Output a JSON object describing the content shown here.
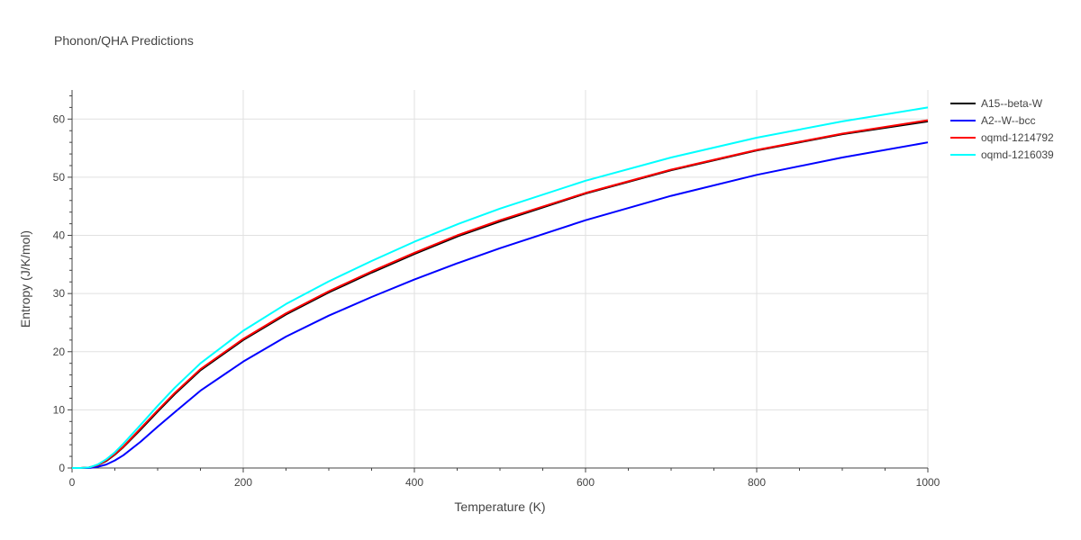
{
  "chart_data": {
    "type": "line",
    "title": "Phonon/QHA Predictions",
    "xlabel": "Temperature (K)",
    "ylabel": "Entropy (J/K/mol)",
    "xlim": [
      0,
      1000
    ],
    "ylim": [
      0,
      65
    ],
    "x_ticks": [
      0,
      200,
      400,
      600,
      800,
      1000
    ],
    "y_ticks": [
      0,
      10,
      20,
      30,
      40,
      50,
      60
    ],
    "grid": true,
    "legend_position": "right",
    "x": [
      0,
      10,
      20,
      30,
      40,
      50,
      60,
      80,
      100,
      120,
      150,
      200,
      250,
      300,
      350,
      400,
      450,
      500,
      600,
      700,
      800,
      900,
      1000
    ],
    "series": [
      {
        "name": "A15--beta-W",
        "color": "#000000",
        "values": [
          0,
          0,
          0.1,
          0.5,
          1.2,
          2.3,
          3.6,
          6.6,
          9.7,
          12.7,
          16.8,
          22.0,
          26.4,
          30.2,
          33.6,
          36.8,
          39.8,
          42.4,
          47.2,
          51.2,
          54.6,
          57.4,
          59.6
        ]
      },
      {
        "name": "A2--W--bcc",
        "color": "#0000ff",
        "values": [
          0,
          0,
          0.0,
          0.2,
          0.6,
          1.3,
          2.2,
          4.5,
          7.1,
          9.6,
          13.3,
          18.3,
          22.6,
          26.2,
          29.4,
          32.4,
          35.2,
          37.8,
          42.6,
          46.8,
          50.4,
          53.4,
          56.0
        ]
      },
      {
        "name": "oqmd-1214792",
        "color": "#ff0000",
        "values": [
          0,
          0,
          0.1,
          0.5,
          1.3,
          2.4,
          3.7,
          6.8,
          9.9,
          12.9,
          17.0,
          22.2,
          26.6,
          30.4,
          33.8,
          37.0,
          40.0,
          42.6,
          47.3,
          51.3,
          54.7,
          57.5,
          59.8
        ]
      },
      {
        "name": "oqmd-1216039",
        "color": "#00ffff",
        "values": [
          0,
          0,
          0.1,
          0.6,
          1.5,
          2.7,
          4.2,
          7.4,
          10.7,
          13.8,
          18.0,
          23.6,
          28.2,
          32.1,
          35.6,
          38.9,
          41.9,
          44.6,
          49.4,
          53.4,
          56.8,
          59.6,
          62.0
        ]
      }
    ]
  }
}
